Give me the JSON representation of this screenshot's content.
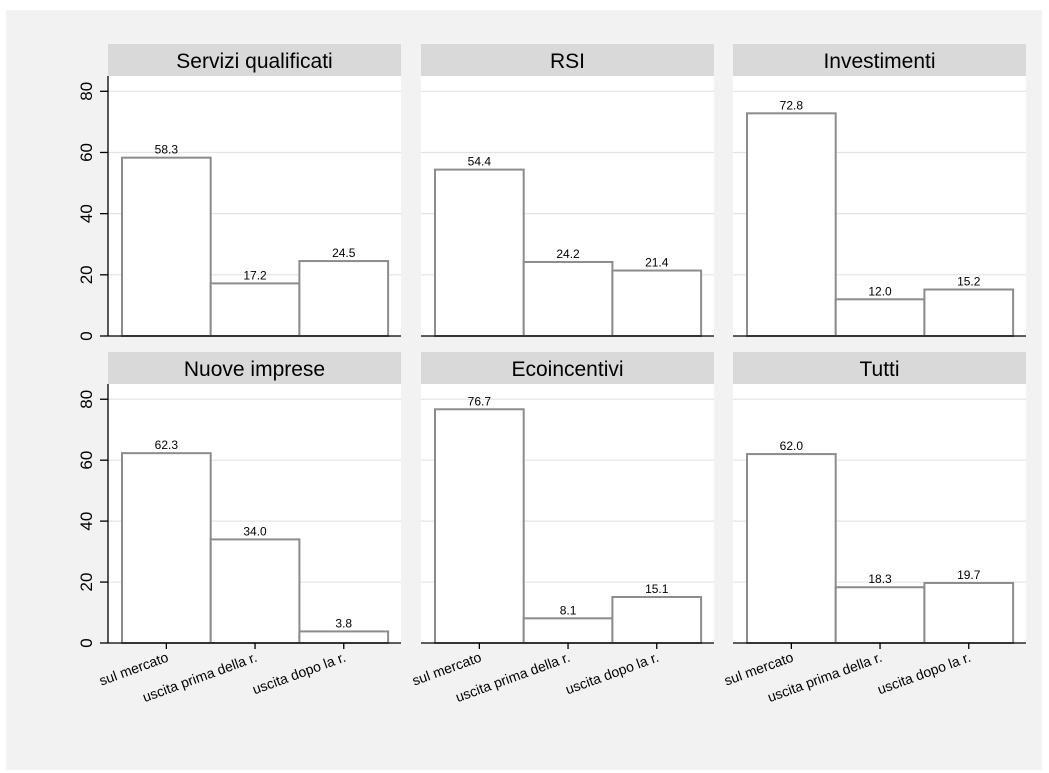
{
  "colors": {
    "outer_background": "#f2f2f2",
    "panel_background": "#ffffff",
    "strip_background": "#d9d9d9",
    "bar_fill": "#ffffff",
    "bar_outline": "#8c8c8c",
    "gridline": "#e4e4e4"
  },
  "chart_data": {
    "type": "bar",
    "layout": "facet grid 2 rows x 3 columns",
    "categories": [
      "sul mercato",
      "uscita prima della r.",
      "uscita dopo la r."
    ],
    "ylim": [
      0,
      85
    ],
    "yticks": [
      "0",
      "20",
      "40",
      "60",
      "80"
    ],
    "ytick_values": [
      0,
      20,
      40,
      60,
      80
    ],
    "grid": true,
    "legend": "none",
    "panels": [
      {
        "title": "Servizi qualificati",
        "values": [
          58.3,
          17.2,
          24.5
        ],
        "labels": [
          "58.3",
          "17.2",
          "24.5"
        ]
      },
      {
        "title": "RSI",
        "values": [
          54.4,
          24.2,
          21.4
        ],
        "labels": [
          "54.4",
          "24.2",
          "21.4"
        ]
      },
      {
        "title": "Investimenti",
        "values": [
          72.8,
          12.0,
          15.2
        ],
        "labels": [
          "72.8",
          "12.0",
          "15.2"
        ]
      },
      {
        "title": "Nuove imprese",
        "values": [
          62.3,
          34.0,
          3.8
        ],
        "labels": [
          "62.3",
          "34.0",
          "3.8"
        ]
      },
      {
        "title": "Ecoincentivi",
        "values": [
          76.7,
          8.1,
          15.1
        ],
        "labels": [
          "76.7",
          "8.1",
          "15.1"
        ]
      },
      {
        "title": "Tutti",
        "values": [
          62.0,
          18.3,
          19.7
        ],
        "labels": [
          "62.0",
          "18.3",
          "19.7"
        ]
      }
    ]
  }
}
